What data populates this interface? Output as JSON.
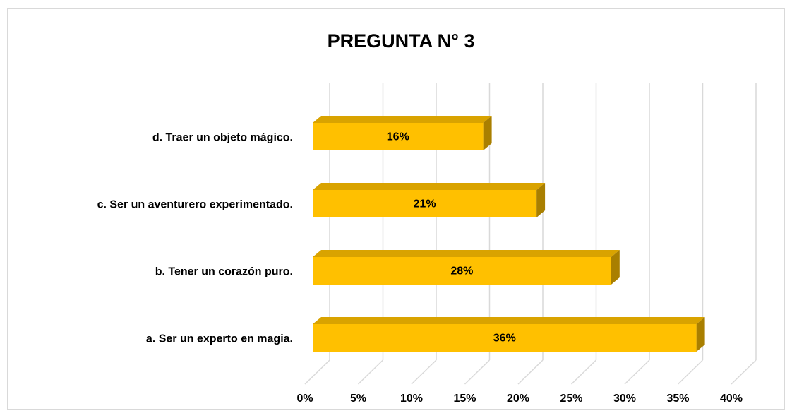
{
  "chart_data": {
    "type": "bar3d_horizontal",
    "title": "PREGUNTA N° 3",
    "categories": [
      "a. Ser un experto en magia.",
      "b. Tener un corazón puro.",
      "c. Ser un aventurero experimentado.",
      "d. Traer un objeto mágico."
    ],
    "values": [
      36,
      28,
      21,
      16
    ],
    "value_labels": [
      "36%",
      "28%",
      "21%",
      "16%"
    ],
    "color": "#FFC000",
    "xlim": [
      0,
      40
    ],
    "xticks": [
      {
        "value": 0,
        "label": "0%"
      },
      {
        "value": 5,
        "label": "5%"
      },
      {
        "value": 10,
        "label": "10%"
      },
      {
        "value": 15,
        "label": "15%"
      },
      {
        "value": 20,
        "label": "20%"
      },
      {
        "value": 25,
        "label": "25%"
      },
      {
        "value": 30,
        "label": "30%"
      },
      {
        "value": 35,
        "label": "35%"
      },
      {
        "value": 40,
        "label": "40%"
      }
    ],
    "grid": true
  }
}
